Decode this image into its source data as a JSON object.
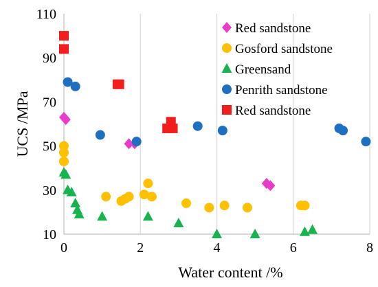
{
  "chart_data": {
    "type": "scatter",
    "xlabel": "Water content /%",
    "ylabel": "UCS /MPa",
    "xlim": [
      0,
      8
    ],
    "ylim": [
      10,
      110
    ],
    "x_ticks": [
      "0",
      "2",
      "4",
      "6",
      "8"
    ],
    "y_ticks": [
      "10",
      "30",
      "50",
      "70",
      "90",
      "110"
    ],
    "grid": "vertical",
    "legend_position": "top-right",
    "series": [
      {
        "name": "Red sandstone",
        "marker": "diamond",
        "color": "#E83BC8",
        "points": [
          [
            0.0,
            63
          ],
          [
            0.05,
            62
          ],
          [
            1.7,
            51
          ],
          [
            1.85,
            51
          ],
          [
            5.3,
            33
          ],
          [
            5.4,
            32
          ]
        ]
      },
      {
        "name": "Gosford sandstone",
        "marker": "circle",
        "color": "#FFC000",
        "points": [
          [
            0.0,
            50
          ],
          [
            0.0,
            47
          ],
          [
            0.0,
            43
          ],
          [
            1.1,
            27
          ],
          [
            1.5,
            25
          ],
          [
            1.6,
            26
          ],
          [
            1.7,
            27
          ],
          [
            2.1,
            28
          ],
          [
            2.2,
            33
          ],
          [
            2.3,
            27
          ],
          [
            3.2,
            24
          ],
          [
            3.8,
            22
          ],
          [
            4.2,
            23
          ],
          [
            4.8,
            22
          ],
          [
            6.2,
            23
          ],
          [
            6.3,
            23
          ]
        ]
      },
      {
        "name": "Greensand",
        "marker": "triangle",
        "color": "#18B24E",
        "points": [
          [
            0.0,
            38
          ],
          [
            0.05,
            37
          ],
          [
            0.1,
            30
          ],
          [
            0.2,
            29
          ],
          [
            0.3,
            24
          ],
          [
            0.35,
            21
          ],
          [
            0.4,
            19
          ],
          [
            1.0,
            18
          ],
          [
            2.2,
            18
          ],
          [
            3.0,
            15
          ],
          [
            4.0,
            10
          ],
          [
            5.0,
            10
          ],
          [
            6.3,
            11
          ],
          [
            6.5,
            12
          ]
        ]
      },
      {
        "name": "Penrith sandstone",
        "marker": "circle",
        "color": "#1F6FC0",
        "points": [
          [
            0.1,
            79
          ],
          [
            0.3,
            77
          ],
          [
            0.95,
            55
          ],
          [
            1.9,
            52
          ],
          [
            3.5,
            59
          ],
          [
            4.15,
            57
          ],
          [
            7.2,
            58
          ],
          [
            7.3,
            57
          ],
          [
            7.9,
            52
          ]
        ]
      },
      {
        "name": "Red sandstone",
        "marker": "square",
        "color": "#F21D1D",
        "points": [
          [
            0.0,
            100
          ],
          [
            0.0,
            94
          ],
          [
            1.4,
            78
          ],
          [
            1.45,
            78
          ],
          [
            2.7,
            58
          ],
          [
            2.8,
            61
          ],
          [
            2.85,
            58
          ]
        ]
      }
    ]
  }
}
